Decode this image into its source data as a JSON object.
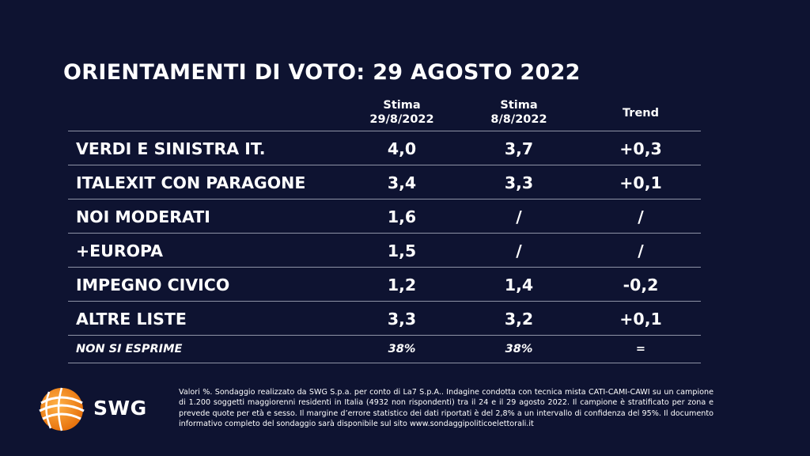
{
  "title": "ORIENTAMENTI DI VOTO: 29 AGOSTO 2022",
  "chart_data": {
    "type": "table",
    "columns": [
      {
        "line1": "Stima",
        "line2": "29/8/2022"
      },
      {
        "line1": "Stima",
        "line2": "8/8/2022"
      },
      {
        "line1": "Trend",
        "line2": ""
      }
    ],
    "rows": [
      {
        "label": "VERDI E SINISTRA IT.",
        "stima_29_8": "4,0",
        "stima_8_8": "3,7",
        "trend": "+0,3"
      },
      {
        "label": "ITALEXIT CON PARAGONE",
        "stima_29_8": "3,4",
        "stima_8_8": "3,3",
        "trend": "+0,1"
      },
      {
        "label": "NOI MODERATI",
        "stima_29_8": "1,6",
        "stima_8_8": "/",
        "trend": "/"
      },
      {
        "label": "+EUROPA",
        "stima_29_8": "1,5",
        "stima_8_8": "/",
        "trend": "/"
      },
      {
        "label": "IMPEGNO CIVICO",
        "stima_29_8": "1,2",
        "stima_8_8": "1,4",
        "trend": "-0,2"
      },
      {
        "label": "ALTRE LISTE",
        "stima_29_8": "3,3",
        "stima_8_8": "3,2",
        "trend": "+0,1"
      },
      {
        "label": "NON SI ESPRIME",
        "stima_29_8": "38%",
        "stima_8_8": "38%",
        "trend": "="
      }
    ]
  },
  "logo": {
    "text": "SWG",
    "icon": "swg-globe-icon",
    "accent": "#f28c1c"
  },
  "footnote": "Valori %. Sondaggio realizzato da SWG S.p.a. per conto di La7 S.p.A.. Indagine condotta con tecnica mista CATI-CAMI-CAWI su un campione di 1.200 soggetti maggiorenni residenti in Italia (4932 non rispondenti) tra il 24 e il 29 agosto 2022. Il campione è stratificato per zona e prevede quote per età e sesso. Il margine d’errore statistico dei dati riportati è del 2,8% a un intervallo di confidenza del 95%. Il documento informativo completo del sondaggio sarà disponibile sul sito www.sondaggipoliticoelettorali.it"
}
